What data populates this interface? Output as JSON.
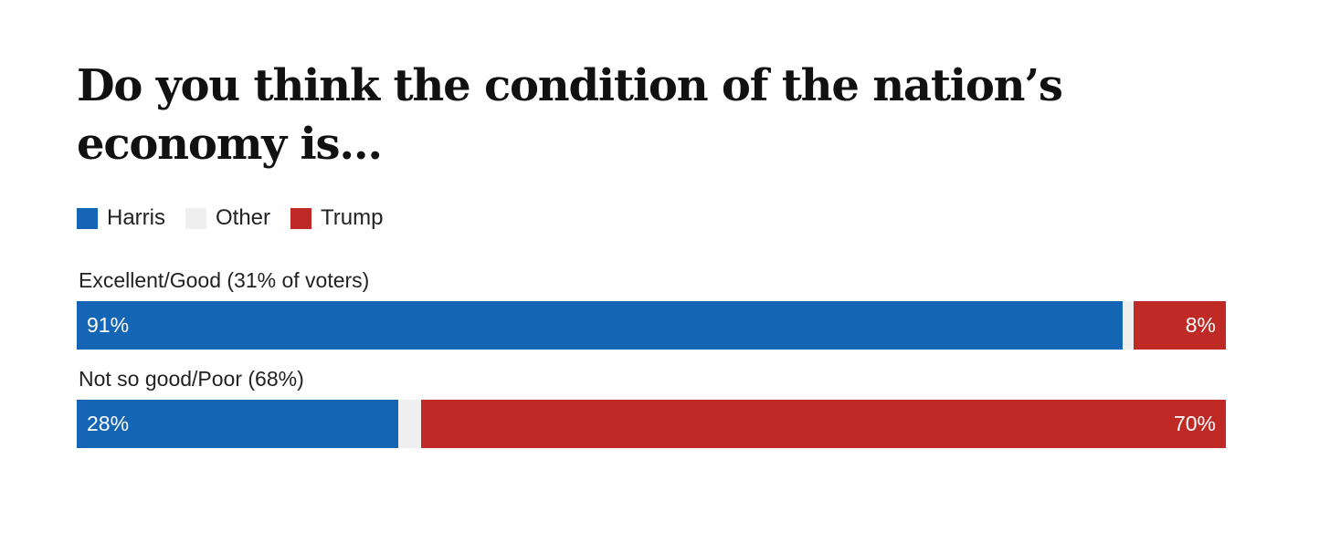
{
  "title": "Do you think the condition of the nation’s economy is...",
  "legend": [
    {
      "label": "Harris",
      "color": "#1565b5"
    },
    {
      "label": "Other",
      "color": "#efefef"
    },
    {
      "label": "Trump",
      "color": "#bf2a27"
    }
  ],
  "chart_data": {
    "type": "bar",
    "orientation": "horizontal",
    "stacked": true,
    "title": "Do you think the condition of the nation’s economy is...",
    "categories": [
      "Excellent/Good (31% of voters)",
      "Not so good/Poor (68%)"
    ],
    "series": [
      {
        "name": "Harris",
        "color": "#1565b5",
        "values": [
          91,
          28
        ],
        "labels": [
          "91%",
          "28%"
        ]
      },
      {
        "name": "Other",
        "color": "#efefef",
        "values": [
          1,
          2
        ],
        "labels": [
          "",
          ""
        ]
      },
      {
        "name": "Trump",
        "color": "#bf2a27",
        "values": [
          8,
          70
        ],
        "labels": [
          "8%",
          "70%"
        ]
      }
    ],
    "xlim": [
      0,
      100
    ],
    "legend_position": "top-left",
    "grid": false
  }
}
